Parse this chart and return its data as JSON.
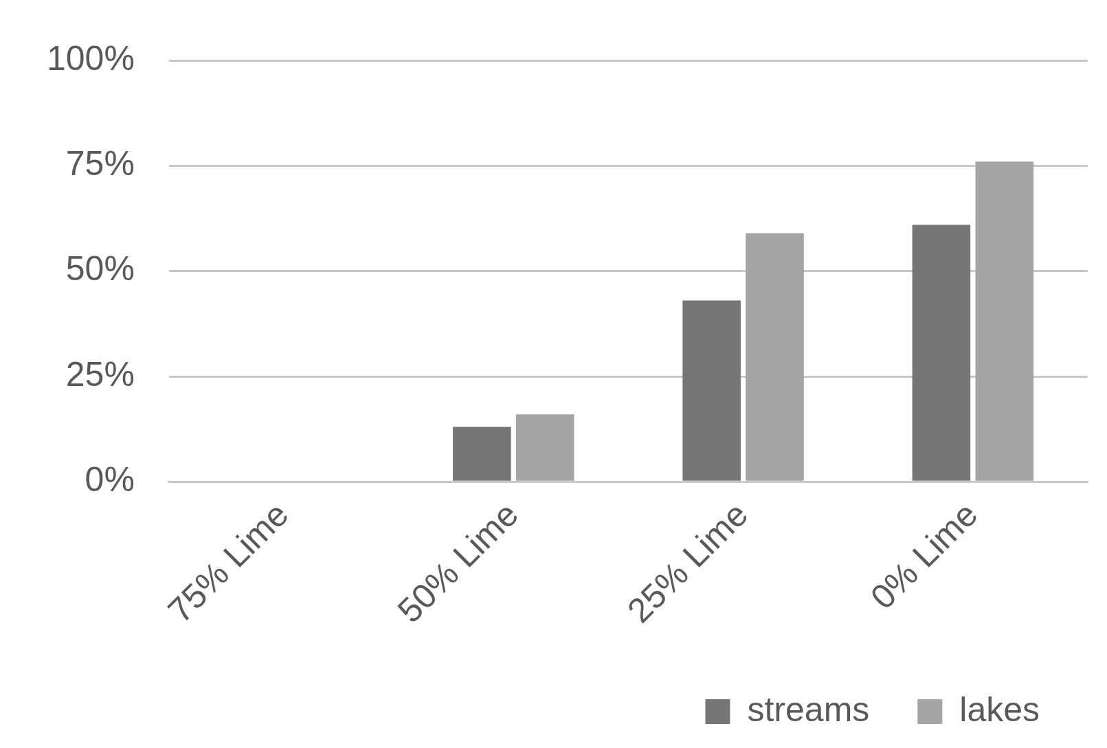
{
  "chart_data": {
    "type": "bar",
    "categories": [
      "75% Lime",
      "50% Lime",
      "25% Lime",
      "0% Lime"
    ],
    "series": [
      {
        "name": "streams",
        "color": "#767676",
        "values": [
          0,
          13,
          43,
          61
        ]
      },
      {
        "name": "lakes",
        "color": "#a5a5a5",
        "values": [
          0,
          16,
          59,
          76
        ]
      }
    ],
    "ylim": [
      0,
      100
    ],
    "yticks": [
      {
        "value": 0,
        "label": "0%"
      },
      {
        "value": 25,
        "label": "25%"
      },
      {
        "value": 50,
        "label": "50%"
      },
      {
        "value": 75,
        "label": "75%"
      },
      {
        "value": 100,
        "label": "100%"
      }
    ],
    "grid": "y",
    "legend": "bottom right"
  }
}
